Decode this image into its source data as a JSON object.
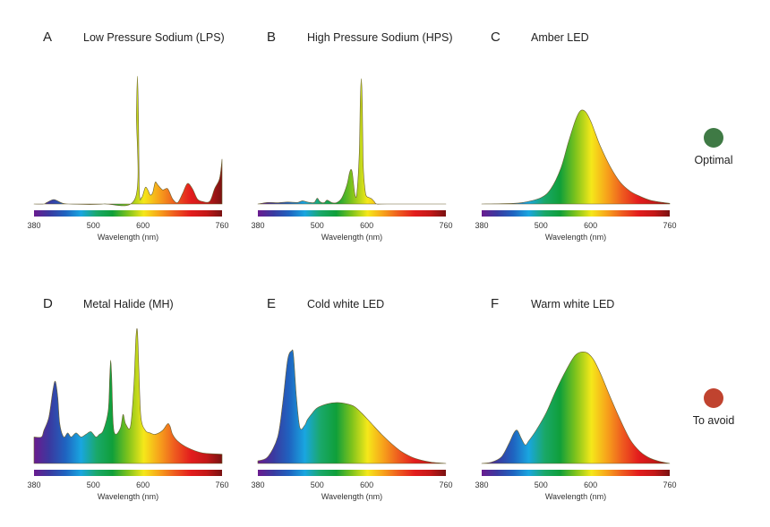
{
  "spectrum_stops": [
    "#6a1b8f",
    "#3a3aa0",
    "#1f63c0",
    "#19a6e0",
    "#1aa86a",
    "#0f9f3a",
    "#7fc31c",
    "#f5e81a",
    "#f7a21b",
    "#ee5a1f",
    "#e31d1d",
    "#c41818",
    "#7a1212"
  ],
  "legend": [
    {
      "label": "Optimal",
      "color": "#3f7a45"
    },
    {
      "label": "To avoid",
      "color": "#c0432f"
    }
  ],
  "chart_data": [
    {
      "type": "area",
      "letter": "A",
      "title": "Low Pressure Sodium (LPS)",
      "xlabel": "Wavelength (nm)",
      "xlim": [
        380,
        760
      ],
      "ylim": [
        0,
        1
      ],
      "xticks": [
        "380",
        "500",
        "600",
        "760"
      ],
      "x": [
        380,
        400,
        405,
        420,
        435,
        450,
        520,
        585,
        587,
        589,
        591,
        593,
        597,
        600,
        605,
        610,
        615,
        620,
        625,
        630,
        640,
        650,
        660,
        670,
        680,
        690,
        700,
        710,
        720,
        735,
        745,
        755,
        760
      ],
      "y": [
        0,
        0,
        0.01,
        0.035,
        0.01,
        0,
        0,
        0.05,
        0.7,
        1.0,
        0.7,
        0.09,
        0.05,
        0.07,
        0.13,
        0.11,
        0.07,
        0.09,
        0.17,
        0.15,
        0.11,
        0.12,
        0.04,
        0.01,
        0.08,
        0.16,
        0.12,
        0.04,
        0.02,
        0.02,
        0.12,
        0.2,
        0.35
      ]
    },
    {
      "type": "area",
      "letter": "B",
      "title": "High Pressure Sodium (HPS)",
      "xlabel": "Wavelength (nm)",
      "xlim": [
        380,
        760
      ],
      "ylim": [
        0,
        1
      ],
      "xticks": [
        "380",
        "500",
        "600",
        "760"
      ],
      "x": [
        380,
        400,
        420,
        440,
        460,
        470,
        480,
        490,
        495,
        500,
        505,
        510,
        515,
        520,
        530,
        540,
        550,
        560,
        565,
        568,
        571,
        576,
        580,
        585,
        587,
        589,
        591,
        593,
        597,
        600,
        605,
        610,
        615,
        620,
        640,
        760
      ],
      "y": [
        0,
        0.012,
        0.01,
        0.015,
        0.012,
        0.025,
        0.015,
        0.01,
        0.015,
        0.045,
        0.02,
        0.01,
        0.012,
        0.03,
        0.01,
        0.012,
        0.05,
        0.15,
        0.24,
        0.27,
        0.24,
        0.08,
        0.08,
        0.4,
        0.8,
        0.98,
        0.8,
        0.3,
        0.1,
        0.06,
        0.05,
        0.04,
        0.02,
        0.0,
        0,
        0
      ]
    },
    {
      "type": "area",
      "letter": "C",
      "title": "Amber LED",
      "xlabel": "Wavelength (nm)",
      "xlim": [
        380,
        760
      ],
      "ylim": [
        0,
        1
      ],
      "xticks": [
        "380",
        "500",
        "600",
        "760"
      ],
      "x": [
        380,
        420,
        460,
        500,
        520,
        540,
        555,
        570,
        580,
        590,
        600,
        610,
        620,
        640,
        660,
        680,
        700,
        720,
        740,
        760
      ],
      "y": [
        0,
        0.002,
        0.01,
        0.05,
        0.12,
        0.28,
        0.48,
        0.66,
        0.73,
        0.72,
        0.65,
        0.55,
        0.45,
        0.29,
        0.17,
        0.1,
        0.06,
        0.03,
        0.015,
        0.005
      ]
    },
    {
      "type": "area",
      "letter": "D",
      "title": "Metal Halide (MH)",
      "xlabel": "Wavelength (nm)",
      "xlim": [
        380,
        760
      ],
      "ylim": [
        0,
        1
      ],
      "xticks": [
        "380",
        "500",
        "600",
        "760"
      ],
      "x": [
        380,
        395,
        400,
        410,
        418,
        423,
        428,
        432,
        440,
        448,
        455,
        465,
        475,
        485,
        495,
        505,
        512,
        520,
        530,
        533,
        535,
        537,
        540,
        545,
        555,
        560,
        565,
        575,
        582,
        586,
        589,
        592,
        596,
        605,
        615,
        625,
        640,
        650,
        655,
        660,
        670,
        690,
        720,
        760
      ],
      "y": [
        0.2,
        0.2,
        0.25,
        0.35,
        0.55,
        0.62,
        0.5,
        0.3,
        0.2,
        0.23,
        0.2,
        0.23,
        0.2,
        0.22,
        0.24,
        0.2,
        0.22,
        0.25,
        0.4,
        0.65,
        0.78,
        0.65,
        0.3,
        0.22,
        0.27,
        0.37,
        0.3,
        0.28,
        0.6,
        0.95,
        1.0,
        0.7,
        0.35,
        0.25,
        0.23,
        0.22,
        0.25,
        0.3,
        0.28,
        0.22,
        0.17,
        0.12,
        0.08,
        0.07
      ]
    },
    {
      "type": "area",
      "letter": "E",
      "title": "Cold white LED",
      "xlabel": "Wavelength (nm)",
      "xlim": [
        380,
        760
      ],
      "ylim": [
        0,
        1
      ],
      "xticks": [
        "380",
        "500",
        "600",
        "760"
      ],
      "x": [
        380,
        400,
        420,
        430,
        440,
        448,
        452,
        458,
        465,
        475,
        480,
        490,
        500,
        520,
        540,
        560,
        575,
        590,
        610,
        630,
        650,
        670,
        690,
        710,
        730,
        750,
        760
      ],
      "y": [
        0.02,
        0.05,
        0.2,
        0.45,
        0.78,
        0.85,
        0.82,
        0.5,
        0.27,
        0.29,
        0.33,
        0.38,
        0.42,
        0.45,
        0.46,
        0.45,
        0.43,
        0.38,
        0.3,
        0.22,
        0.15,
        0.09,
        0.05,
        0.025,
        0.01,
        0.003,
        0.0
      ]
    },
    {
      "type": "area",
      "letter": "F",
      "title": "Warm white LED",
      "xlabel": "Wavelength (nm)",
      "xlim": [
        380,
        760
      ],
      "ylim": [
        0,
        1
      ],
      "xticks": [
        "380",
        "500",
        "600",
        "760"
      ],
      "x": [
        380,
        400,
        420,
        435,
        445,
        452,
        460,
        468,
        475,
        490,
        510,
        530,
        550,
        570,
        590,
        605,
        620,
        640,
        660,
        680,
        700,
        720,
        740,
        760
      ],
      "y": [
        0.0,
        0.01,
        0.05,
        0.15,
        0.23,
        0.25,
        0.19,
        0.14,
        0.17,
        0.25,
        0.38,
        0.55,
        0.7,
        0.82,
        0.84,
        0.79,
        0.68,
        0.5,
        0.33,
        0.18,
        0.09,
        0.04,
        0.015,
        0.0
      ]
    }
  ]
}
